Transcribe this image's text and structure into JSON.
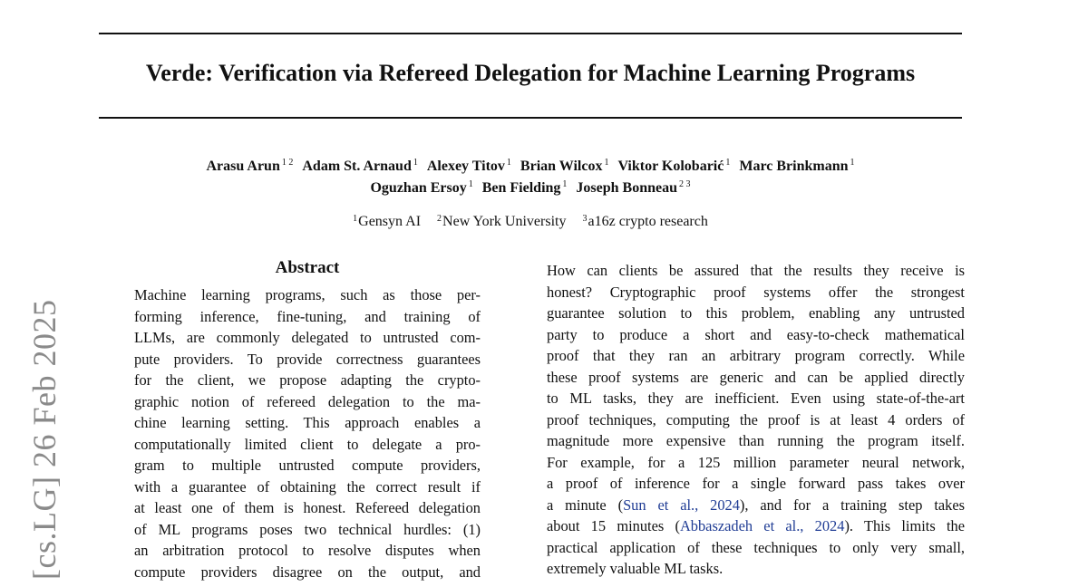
{
  "header": {
    "title": "Verde: Verification via Refereed Delegation for Machine Learning Programs",
    "authors": [
      {
        "name": "Arasu Arun",
        "sup": "1 2"
      },
      {
        "name": "Adam St. Arnaud",
        "sup": "1"
      },
      {
        "name": "Alexey Titov",
        "sup": "1"
      },
      {
        "name": "Brian Wilcox",
        "sup": "1"
      },
      {
        "name": "Viktor Kolobarić",
        "sup": "1"
      },
      {
        "name": "Marc Brinkmann",
        "sup": "1"
      },
      {
        "name": "Oguzhan Ersoy",
        "sup": "1"
      },
      {
        "name": "Ben Fielding",
        "sup": "1"
      },
      {
        "name": "Joseph Bonneau",
        "sup": "2 3"
      }
    ],
    "affiliations": [
      {
        "sup": "1",
        "name": "Gensyn AI"
      },
      {
        "sup": "2",
        "name": "New York University"
      },
      {
        "sup": "3",
        "name": "a16z crypto research"
      }
    ]
  },
  "stamp": "[cs.LG]  26 Feb 2025",
  "abstract": {
    "heading": "Abstract",
    "lines": [
      "Machine learning programs, such as those per-",
      "forming inference, fine-tuning, and training of",
      "LLMs, are commonly delegated to untrusted com-",
      "pute providers. To provide correctness guarantees",
      "for the client, we propose adapting the crypto-",
      "graphic notion of refereed delegation to the ma-",
      "chine learning setting. This approach enables a",
      "computationally limited client to delegate a pro-",
      "gram to multiple untrusted compute providers,",
      "with a guarantee of obtaining the correct result if",
      "at least one of them is honest. Refereed delegation",
      "of ML programs poses two technical hurdles: (1)",
      "an arbitration protocol to resolve disputes when",
      "compute providers disagree on the output, and"
    ]
  },
  "intro": {
    "lines": [
      {
        "text": "How can clients be assured that the results they receive is"
      },
      {
        "text": "honest? Cryptographic proof systems offer the strongest"
      },
      {
        "text": "guarantee solution to this problem, enabling any untrusted"
      },
      {
        "text": "party to produce a short and easy-to-check mathematical"
      },
      {
        "text": "proof that they ran an arbitrary program correctly. While"
      },
      {
        "text": "these proof systems are generic and can be applied directly"
      },
      {
        "text": "to ML tasks, they are inefficient. Even using state-of-the-art"
      },
      {
        "text": "proof techniques, computing the proof is at least 4 orders of"
      },
      {
        "text": "magnitude more expensive than running the program itself."
      },
      {
        "text": "For example, for a 125 million parameter neural network,"
      },
      {
        "text": "a proof of inference for a single forward pass takes over"
      },
      {
        "text": "a minute (",
        "cite": "Sun et al., 2024",
        "after": "), and for a training step takes"
      },
      {
        "text": "about 15 minutes (",
        "cite": "Abbaszadeh et al., 2024",
        "after": "). This limits the"
      },
      {
        "text": "practical application of these techniques to only very small,"
      },
      {
        "text": "extremely valuable ML tasks."
      }
    ]
  }
}
